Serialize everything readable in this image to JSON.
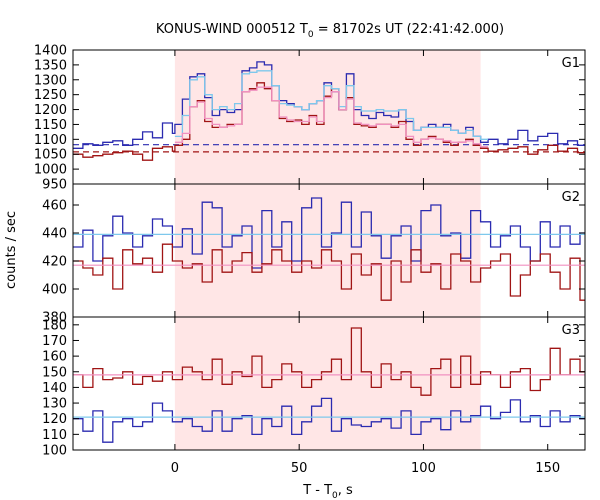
{
  "chart_data": {
    "type": "line",
    "title_prefix": "KONUS-WIND 000512 T",
    "title_sub": "0",
    "title_suffix": " = 81702s UT (22:41:42.000)",
    "xlabel_prefix": "T - T",
    "xlabel_sub": "0",
    "xlabel_suffix": ", s",
    "ylabel": "counts / sec",
    "xlim": [
      -41,
      165
    ],
    "xticks": [
      0,
      50,
      100,
      150
    ],
    "shaded_interval": [
      0,
      123
    ],
    "colors": {
      "blue": "#2b2bb0",
      "red": "#a01414",
      "light_blue": "#7ec8ec",
      "pink": "#f090c0",
      "shade": "#ffe6e6"
    },
    "panels": [
      {
        "name": "G1",
        "ylim": [
          950,
          1400
        ],
        "yticks": [
          950,
          1000,
          1050,
          1100,
          1150,
          1200,
          1250,
          1300,
          1350,
          1400
        ],
        "background_levels": {
          "blue": 1082,
          "red": 1058
        },
        "series": [
          {
            "color": "blue",
            "x": [
              -41,
              -37,
              -33,
              -29,
              -25,
              -21,
              -17,
              -13,
              -9,
              -5,
              -1,
              0,
              3,
              6,
              9,
              12,
              15,
              18,
              21,
              24,
              27,
              30,
              33,
              36,
              39,
              42,
              45,
              48,
              51,
              54,
              57,
              60,
              63,
              66,
              69,
              72,
              75,
              78,
              81,
              84,
              87,
              90,
              93,
              96,
              99,
              102,
              105,
              108,
              111,
              114,
              117,
              120,
              123,
              126,
              130,
              134,
              138,
              142,
              146,
              150,
              154,
              158,
              162
            ],
            "values": [
              1070,
              1085,
              1080,
              1090,
              1095,
              1080,
              1100,
              1125,
              1105,
              1155,
              1120,
              1150,
              1235,
              1310,
              1320,
              1240,
              1180,
              1200,
              1190,
              1200,
              1330,
              1340,
              1360,
              1350,
              1280,
              1230,
              1220,
              1210,
              1200,
              1220,
              1230,
              1290,
              1260,
              1200,
              1320,
              1200,
              1180,
              1170,
              1190,
              1180,
              1175,
              1200,
              1160,
              1130,
              1140,
              1150,
              1140,
              1150,
              1130,
              1120,
              1140,
              1110,
              1090,
              1100,
              1085,
              1100,
              1130,
              1095,
              1110,
              1120,
              1085,
              1095,
              1080
            ]
          },
          {
            "color": "red",
            "x": [
              -41,
              -37,
              -33,
              -29,
              -25,
              -21,
              -17,
              -13,
              -9,
              -5,
              -1,
              0,
              3,
              6,
              9,
              12,
              15,
              18,
              21,
              24,
              27,
              30,
              33,
              36,
              39,
              42,
              45,
              48,
              51,
              54,
              57,
              60,
              63,
              66,
              69,
              72,
              75,
              78,
              81,
              84,
              87,
              90,
              93,
              96,
              99,
              102,
              105,
              108,
              111,
              114,
              117,
              120,
              123,
              126,
              130,
              134,
              138,
              142,
              146,
              150,
              154,
              158,
              162
            ],
            "values": [
              1050,
              1040,
              1045,
              1050,
              1055,
              1060,
              1050,
              1030,
              1070,
              1075,
              1060,
              1080,
              1100,
              1210,
              1230,
              1160,
              1140,
              1140,
              1150,
              1150,
              1260,
              1270,
              1290,
              1270,
              1230,
              1170,
              1160,
              1165,
              1150,
              1180,
              1150,
              1245,
              1270,
              1200,
              1240,
              1150,
              1145,
              1140,
              1150,
              1150,
              1140,
              1160,
              1100,
              1080,
              1100,
              1110,
              1100,
              1090,
              1080,
              1090,
              1100,
              1080,
              1070,
              1060,
              1065,
              1070,
              1075,
              1050,
              1065,
              1080,
              1060,
              1070,
              1055
            ]
          },
          {
            "color": "light_blue",
            "x": [
              0,
              3,
              6,
              9,
              12,
              15,
              18,
              21,
              24,
              27,
              30,
              33,
              36,
              39,
              42,
              45,
              48,
              51,
              54,
              57,
              60,
              63,
              66,
              69,
              72,
              75,
              78,
              81,
              84,
              87,
              90,
              93,
              96,
              99,
              102,
              105,
              108,
              111,
              114,
              117,
              120,
              123
            ],
            "values": [
              1110,
              1180,
              1300,
              1310,
              1250,
              1200,
              1210,
              1200,
              1220,
              1320,
              1325,
              1330,
              1330,
              1280,
              1220,
              1215,
              1210,
              1200,
              1220,
              1230,
              1280,
              1270,
              1210,
              1280,
              1210,
              1195,
              1195,
              1200,
              1195,
              1195,
              1200,
              1170,
              1130,
              1140,
              1140,
              1140,
              1140,
              1130,
              1120,
              1130,
              1110,
              1100
            ]
          },
          {
            "color": "pink",
            "x": [
              0,
              3,
              6,
              9,
              12,
              15,
              18,
              21,
              24,
              27,
              30,
              33,
              36,
              39,
              42,
              45,
              48,
              51,
              54,
              57,
              60,
              63,
              66,
              69,
              72,
              75,
              78,
              81,
              84,
              87,
              90,
              93,
              96,
              99,
              102,
              105,
              108,
              111,
              114,
              117,
              120,
              123
            ],
            "values": [
              1090,
              1120,
              1210,
              1225,
              1170,
              1150,
              1140,
              1145,
              1150,
              1260,
              1265,
              1275,
              1275,
              1230,
              1175,
              1165,
              1160,
              1160,
              1175,
              1160,
              1240,
              1260,
              1200,
              1235,
              1155,
              1150,
              1145,
              1150,
              1150,
              1145,
              1150,
              1110,
              1090,
              1100,
              1105,
              1100,
              1095,
              1090,
              1090,
              1095,
              1085,
              1075
            ]
          }
        ]
      },
      {
        "name": "G2",
        "ylim": [
          380,
          475
        ],
        "yticks": [
          380,
          400,
          420,
          440,
          460
        ],
        "series": [
          {
            "color": "blue",
            "x": [
              -41,
              -37,
              -33,
              -29,
              -25,
              -21,
              -17,
              -13,
              -9,
              -5,
              -1,
              3,
              7,
              11,
              15,
              19,
              23,
              27,
              31,
              35,
              39,
              43,
              47,
              51,
              55,
              59,
              63,
              67,
              71,
              75,
              79,
              83,
              87,
              91,
              95,
              99,
              103,
              107,
              111,
              115,
              119,
              123,
              127,
              131,
              135,
              139,
              143,
              147,
              151,
              155,
              159,
              163
            ],
            "values": [
              430,
              442,
              420,
              438,
              452,
              440,
              430,
              438,
              450,
              445,
              430,
              443,
              425,
              462,
              458,
              430,
              438,
              445,
              415,
              456,
              430,
              448,
              420,
              458,
              465,
              430,
              440,
              462,
              430,
              455,
              438,
              422,
              438,
              445,
              420,
              456,
              460,
              438,
              440,
              422,
              456,
              448,
              430,
              438,
              445,
              430,
              420,
              448,
              430,
              445,
              432,
              440
            ]
          },
          {
            "color": "red",
            "x": [
              -41,
              -37,
              -33,
              -29,
              -25,
              -21,
              -17,
              -13,
              -9,
              -5,
              -1,
              3,
              7,
              11,
              15,
              19,
              23,
              27,
              31,
              35,
              39,
              43,
              47,
              51,
              55,
              59,
              63,
              67,
              71,
              75,
              79,
              83,
              87,
              91,
              95,
              99,
              103,
              107,
              111,
              115,
              119,
              123,
              127,
              131,
              135,
              139,
              143,
              147,
              151,
              155,
              159,
              163
            ],
            "values": [
              420,
              415,
              410,
              422,
              400,
              428,
              418,
              422,
              412,
              432,
              420,
              415,
              418,
              405,
              428,
              412,
              420,
              426,
              412,
              418,
              428,
              420,
              412,
              420,
              415,
              428,
              420,
              400,
              425,
              410,
              418,
              392,
              420,
              405,
              428,
              412,
              418,
              400,
              425,
              420,
              405,
              415,
              420,
              425,
              395,
              410,
              420,
              425,
              412,
              400,
              422,
              392
            ]
          },
          {
            "color": "light_blue",
            "x": [
              -41,
              165
            ],
            "values": [
              439,
              439
            ]
          },
          {
            "color": "pink",
            "x": [
              -41,
              165
            ],
            "values": [
              417,
              417
            ]
          }
        ]
      },
      {
        "name": "G3",
        "ylim": [
          100,
          185
        ],
        "yticks": [
          100,
          110,
          120,
          130,
          140,
          150,
          160,
          170,
          180
        ],
        "series": [
          {
            "color": "red",
            "x": [
              -41,
              -37,
              -33,
              -29,
              -25,
              -21,
              -17,
              -13,
              -9,
              -5,
              -1,
              3,
              7,
              11,
              15,
              19,
              23,
              27,
              31,
              35,
              39,
              43,
              47,
              51,
              55,
              59,
              63,
              67,
              71,
              75,
              79,
              83,
              87,
              91,
              95,
              99,
              103,
              107,
              111,
              115,
              119,
              123,
              127,
              131,
              135,
              139,
              143,
              147,
              151,
              155,
              159,
              163
            ],
            "values": [
              148,
              140,
              152,
              145,
              146,
              150,
              142,
              147,
              144,
              150,
              145,
              153,
              150,
              145,
              158,
              142,
              150,
              147,
              160,
              140,
              145,
              155,
              150,
              140,
              145,
              150,
              158,
              145,
              178,
              150,
              140,
              155,
              145,
              150,
              140,
              135,
              152,
              158,
              140,
              160,
              142,
              150,
              148,
              140,
              150,
              152,
              138,
              145,
              165,
              148,
              158,
              150
            ]
          },
          {
            "color": "blue",
            "x": [
              -41,
              -37,
              -33,
              -29,
              -25,
              -21,
              -17,
              -13,
              -9,
              -5,
              -1,
              3,
              7,
              11,
              15,
              19,
              23,
              27,
              31,
              35,
              39,
              43,
              47,
              51,
              55,
              59,
              63,
              67,
              71,
              75,
              79,
              83,
              87,
              91,
              95,
              99,
              103,
              107,
              111,
              115,
              119,
              123,
              127,
              131,
              135,
              139,
              143,
              147,
              151,
              155,
              159,
              163
            ],
            "values": [
              120,
              112,
              125,
              105,
              118,
              120,
              115,
              118,
              130,
              125,
              118,
              120,
              115,
              112,
              125,
              112,
              120,
              122,
              110,
              120,
              115,
              128,
              110,
              118,
              128,
              133,
              112,
              120,
              116,
              115,
              118,
              120,
              114,
              125,
              110,
              118,
              120,
              113,
              125,
              118,
              122,
              128,
              120,
              124,
              132,
              118,
              122,
              115,
              125,
              118,
              122,
              120
            ]
          },
          {
            "color": "pink",
            "x": [
              -41,
              165
            ],
            "values": [
              148,
              148
            ]
          },
          {
            "color": "light_blue",
            "x": [
              -41,
              165
            ],
            "values": [
              121,
              121
            ]
          }
        ]
      }
    ]
  }
}
